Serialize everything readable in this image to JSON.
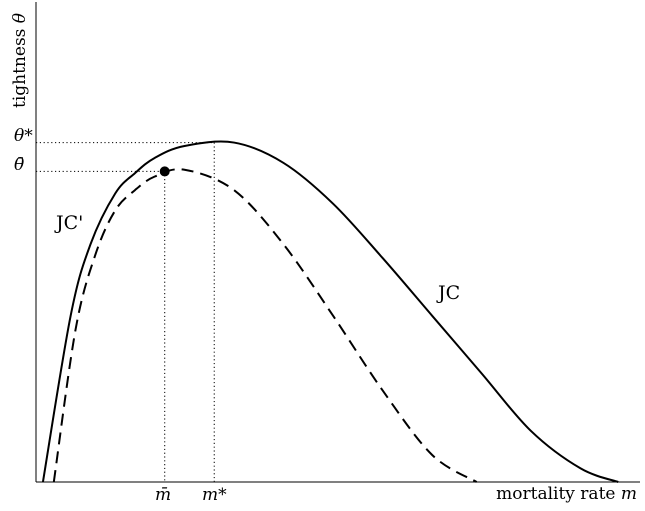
{
  "chart_data": {
    "type": "line",
    "title": "",
    "xlabel": "mortality rate m",
    "ylabel": "tightness θ",
    "axes": {
      "x_label_text": "mortality rate ",
      "x_label_var": "m",
      "y_label_text": "tightness ",
      "y_label_var": "θ"
    },
    "ticks": {
      "x": [
        {
          "text": "m̄",
          "note": "mbar"
        },
        {
          "text": "m*",
          "note": "mstar"
        }
      ],
      "y": [
        {
          "text": "θ*",
          "note": "thetastar"
        },
        {
          "text": "θ̄",
          "note": "thetabar"
        }
      ]
    },
    "series": [
      {
        "name": "JC",
        "style": "solid",
        "x": [
          0.07,
          0.35,
          0.55,
          0.8,
          1.0,
          1.2,
          1.5,
          2.0,
          2.5,
          3.0,
          3.5,
          4.0,
          4.5,
          5.0,
          5.5,
          5.88
        ],
        "y": [
          0.0,
          0.49,
          0.7,
          0.85,
          0.91,
          0.955,
          0.99,
          1.0,
          0.94,
          0.82,
          0.66,
          0.49,
          0.32,
          0.15,
          0.04,
          0.0
        ]
      },
      {
        "name": "JC'",
        "style": "dashed",
        "x": [
          0.18,
          0.4,
          0.6,
          0.8,
          1.0,
          1.2,
          1.5,
          2.0,
          2.5,
          3.0,
          3.5,
          4.0,
          4.45
        ],
        "y": [
          0.0,
          0.45,
          0.67,
          0.8,
          0.86,
          0.9,
          0.92,
          0.86,
          0.7,
          0.49,
          0.27,
          0.08,
          0.0
        ]
      }
    ],
    "points": [
      {
        "name": "intersection",
        "x": 1.3,
        "y": 0.915
      }
    ],
    "guides": {
      "m_bar": 1.3,
      "m_star": 1.8,
      "theta_bar": 0.915,
      "theta_star": 1.0
    },
    "xlim": [
      0,
      6.1
    ],
    "ylim": [
      0,
      1.42
    ],
    "grid": false,
    "legend": "none",
    "colors": {
      "line": "#000000"
    }
  }
}
